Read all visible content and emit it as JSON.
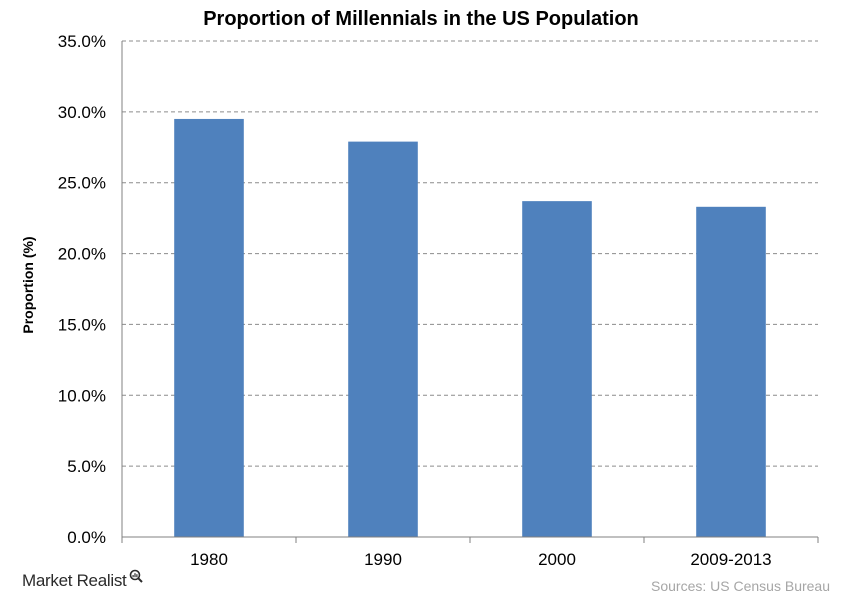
{
  "chart_data": {
    "type": "bar",
    "title": "Proportion of Millennials in the US Population",
    "ylabel": "Proportion (%)",
    "xlabel": "",
    "categories": [
      "1980",
      "1990",
      "2000",
      "2009-2013"
    ],
    "values": [
      29.5,
      27.9,
      23.7,
      23.3
    ],
    "ylim": [
      0,
      35
    ],
    "yticks": [
      "0.0%",
      "5.0%",
      "10.0%",
      "15.0%",
      "20.0%",
      "25.0%",
      "30.0%",
      "35.0%"
    ],
    "grid": "horizontal-dashed",
    "legend": "none",
    "bar_color": "#4f81bd"
  },
  "footer": {
    "brand": "Market Realist",
    "brand_icon": "magnifier-icon",
    "source": "Sources: US Census Bureau"
  }
}
